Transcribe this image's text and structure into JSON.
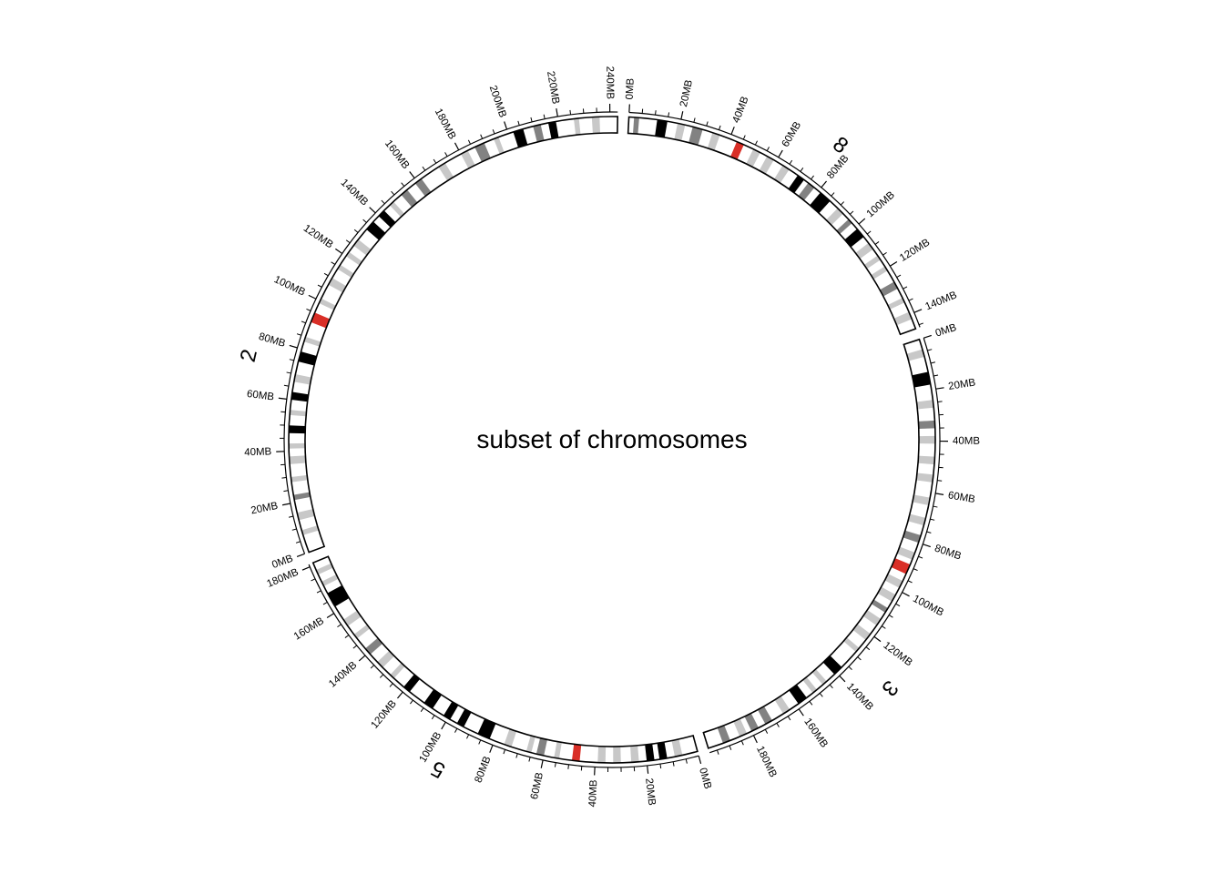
{
  "title": "subset of chromosomes",
  "tick_unit": "MB",
  "colors": {
    "gneg": "#ffffff",
    "gpos25": "#c8c8c8",
    "gpos50": "#c8c8c8",
    "gpos75": "#828282",
    "gpos100": "#000000",
    "acen": "#d92f27",
    "outline": "#000000"
  },
  "chromosomes": [
    {
      "name": "2",
      "length_mb": 243,
      "label_ticks": [
        0,
        20,
        40,
        60,
        80,
        100,
        120,
        140,
        160,
        180,
        200,
        220,
        240
      ],
      "bands": [
        [
          7,
          9,
          "gpos50"
        ],
        [
          13,
          16,
          "gpos50"
        ],
        [
          21,
          23,
          "gpos75"
        ],
        [
          28,
          30,
          "gpos50"
        ],
        [
          35,
          38,
          "gpos25"
        ],
        [
          41,
          43,
          "gpos50"
        ],
        [
          47,
          50,
          "gpos100"
        ],
        [
          54,
          56,
          "gpos25"
        ],
        [
          60,
          63,
          "gpos100"
        ],
        [
          67,
          70,
          "gpos50"
        ],
        [
          75,
          79,
          "gpos100"
        ],
        [
          83,
          85,
          "gpos25"
        ],
        [
          91,
          95,
          "acen"
        ],
        [
          99,
          101,
          "gpos50"
        ],
        [
          107,
          110,
          "gpos50"
        ],
        [
          114,
          116,
          "gpos25"
        ],
        [
          120,
          122,
          "gpos50"
        ],
        [
          125,
          128,
          "gpos25"
        ],
        [
          133,
          137,
          "gpos100"
        ],
        [
          140,
          143,
          "gpos100"
        ],
        [
          146,
          148,
          "gpos25"
        ],
        [
          152,
          155,
          "gpos75"
        ],
        [
          159,
          162,
          "gpos75"
        ],
        [
          170,
          173,
          "gpos25"
        ],
        [
          180,
          183,
          "gpos50"
        ],
        [
          186,
          190,
          "gpos75"
        ],
        [
          194,
          196,
          "gpos25"
        ],
        [
          202,
          206,
          "gpos100"
        ],
        [
          210,
          213,
          "gpos75"
        ],
        [
          216,
          219,
          "gpos100"
        ],
        [
          226,
          228,
          "gpos50"
        ],
        [
          233,
          236,
          "gpos25"
        ]
      ]
    },
    {
      "name": "8",
      "length_mb": 146,
      "label_ticks": [
        0,
        20,
        40,
        60,
        80,
        100,
        120,
        140
      ],
      "bands": [
        [
          2,
          4,
          "gpos75"
        ],
        [
          11,
          15,
          "gpos100"
        ],
        [
          19,
          22,
          "gpos50"
        ],
        [
          25,
          29,
          "gpos75"
        ],
        [
          33,
          36,
          "gpos50"
        ],
        [
          43,
          46,
          "acen"
        ],
        [
          50,
          53,
          "gpos25"
        ],
        [
          56,
          59,
          "gpos50"
        ],
        [
          63,
          66,
          "gpos25"
        ],
        [
          70,
          73,
          "gpos100"
        ],
        [
          75,
          78,
          "gpos75"
        ],
        [
          81,
          86,
          "gpos100"
        ],
        [
          90,
          93,
          "gpos25"
        ],
        [
          96,
          98,
          "gpos75"
        ],
        [
          101,
          105,
          "gpos100"
        ],
        [
          108,
          111,
          "gpos50"
        ],
        [
          114,
          116,
          "gpos25"
        ],
        [
          119,
          121,
          "gpos50"
        ],
        [
          126,
          129,
          "gpos75"
        ],
        [
          133,
          135,
          "gpos25"
        ],
        [
          139,
          142,
          "gpos50"
        ]
      ]
    },
    {
      "name": "3",
      "length_mb": 198,
      "label_ticks": [
        0,
        20,
        40,
        60,
        80,
        100,
        120,
        140,
        160,
        180
      ],
      "bands": [
        [
          4,
          7,
          "gpos25"
        ],
        [
          13,
          18,
          "gpos100"
        ],
        [
          24,
          27,
          "gpos50"
        ],
        [
          32,
          35,
          "gpos75"
        ],
        [
          38,
          41,
          "gpos50"
        ],
        [
          46,
          49,
          "gpos25"
        ],
        [
          53,
          56,
          "gpos50"
        ],
        [
          62,
          65,
          "gpos25"
        ],
        [
          70,
          73,
          "gpos25"
        ],
        [
          77,
          80,
          "gpos75"
        ],
        [
          84,
          87,
          "gpos50"
        ],
        [
          89,
          93,
          "acen"
        ],
        [
          96,
          99,
          "gpos25"
        ],
        [
          102,
          105,
          "gpos50"
        ],
        [
          108,
          110,
          "gpos75"
        ],
        [
          113,
          116,
          "gpos50"
        ],
        [
          120,
          123,
          "gpos25"
        ],
        [
          127,
          129,
          "gpos50"
        ],
        [
          137,
          141,
          "gpos100"
        ],
        [
          145,
          147,
          "gpos25"
        ],
        [
          150,
          152,
          "gpos50"
        ],
        [
          155,
          159,
          "gpos100"
        ],
        [
          163,
          166,
          "gpos25"
        ],
        [
          171,
          174,
          "gpos75"
        ],
        [
          177,
          180,
          "gpos75"
        ],
        [
          182,
          185,
          "gpos50"
        ],
        [
          189,
          192,
          "gpos75"
        ]
      ]
    },
    {
      "name": "5",
      "length_mb": 181,
      "label_ticks": [
        0,
        20,
        40,
        60,
        80,
        100,
        120,
        140,
        160,
        180
      ],
      "bands": [
        [
          6,
          9,
          "gpos25"
        ],
        [
          12,
          15,
          "gpos100"
        ],
        [
          17,
          20,
          "gpos100"
        ],
        [
          23,
          26,
          "gpos50"
        ],
        [
          30,
          33,
          "gpos25"
        ],
        [
          36,
          39,
          "gpos50"
        ],
        [
          46,
          49,
          "acen"
        ],
        [
          54,
          56,
          "gpos25"
        ],
        [
          60,
          63,
          "gpos75"
        ],
        [
          65,
          67,
          "gpos50"
        ],
        [
          73,
          76,
          "gpos25"
        ],
        [
          82,
          87,
          "gpos100"
        ],
        [
          93,
          96,
          "gpos100"
        ],
        [
          99,
          102,
          "gpos100"
        ],
        [
          107,
          111,
          "gpos100"
        ],
        [
          118,
          121,
          "gpos100"
        ],
        [
          126,
          128,
          "gpos25"
        ],
        [
          132,
          135,
          "gpos50"
        ],
        [
          139,
          142,
          "gpos75"
        ],
        [
          147,
          149,
          "gpos25"
        ],
        [
          153,
          156,
          "gpos50"
        ],
        [
          162,
          168,
          "gpos100"
        ],
        [
          171,
          173,
          "gpos25"
        ],
        [
          176,
          178,
          "gpos50"
        ]
      ]
    }
  ]
}
